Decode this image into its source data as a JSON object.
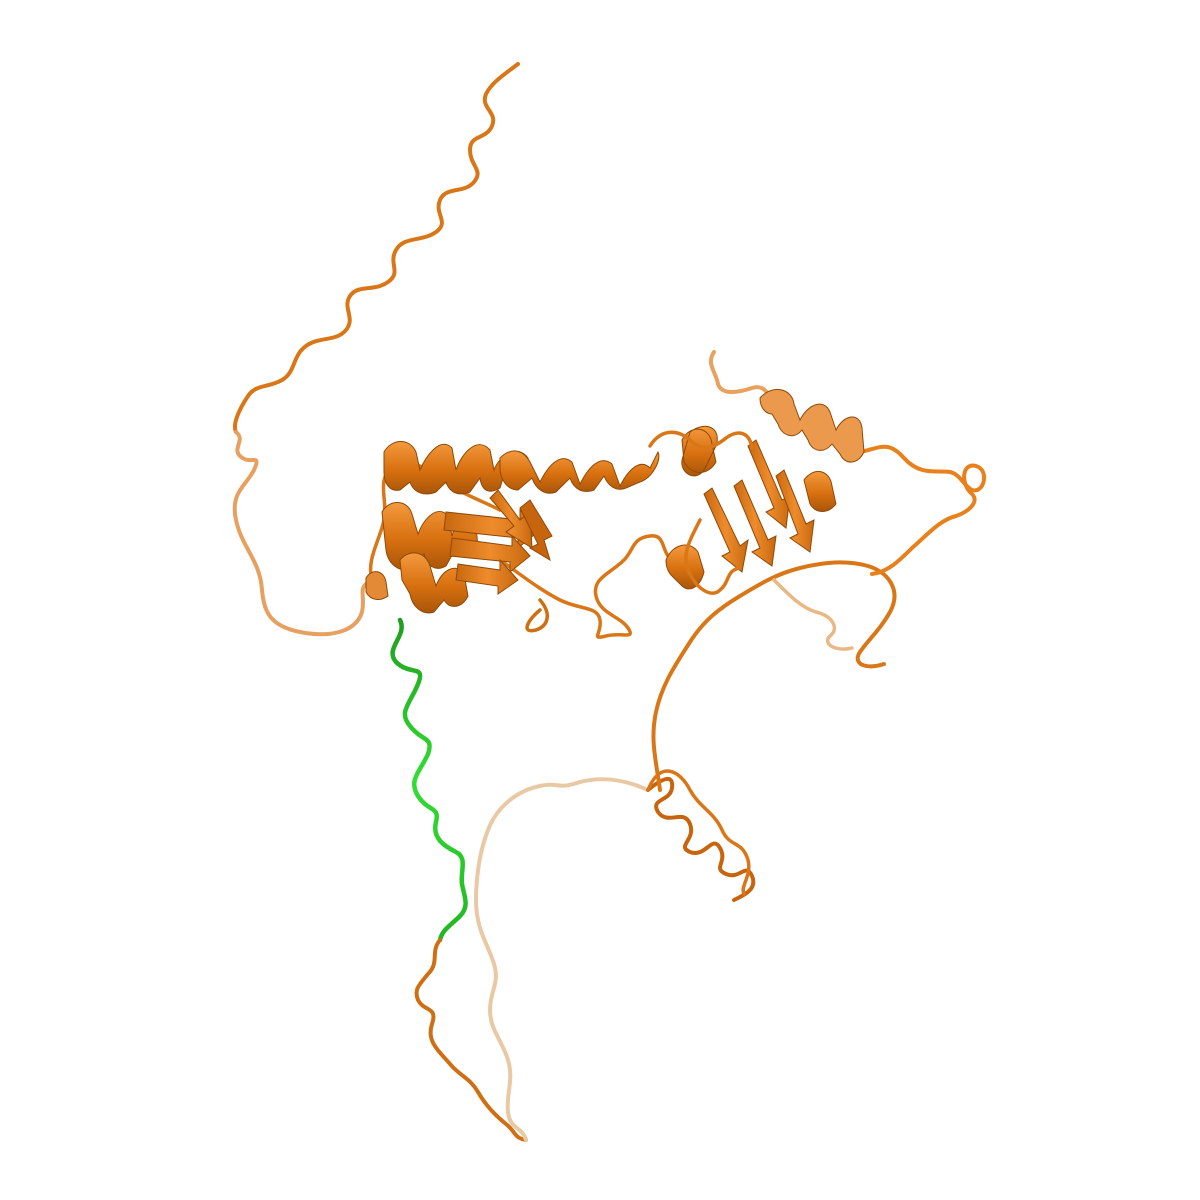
{
  "image": {
    "subject": "protein-cartoon",
    "colors": {
      "background": "#ffffff",
      "chain_main": "#e8801c",
      "chain_dark": "#b85f0c",
      "chain_light": "#f3b878",
      "chain_faded": "#e9c9a4",
      "segment_highlight": "#22cc22"
    }
  }
}
